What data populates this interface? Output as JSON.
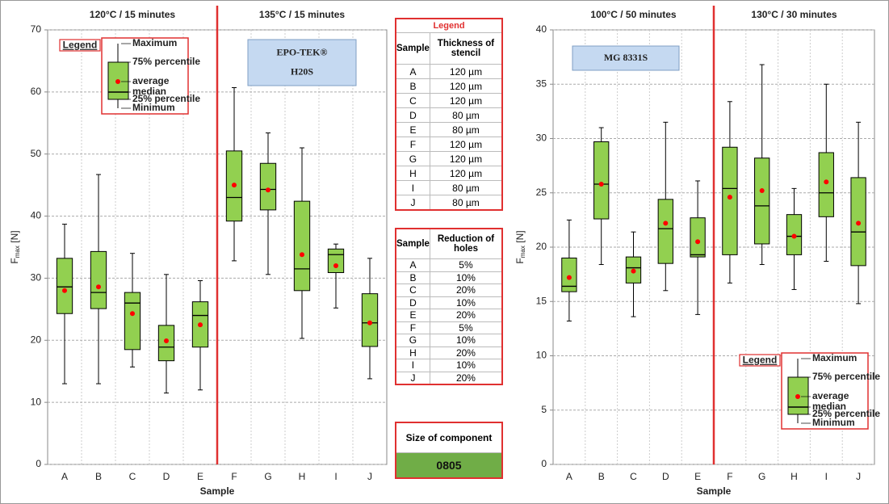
{
  "chart_data": [
    {
      "type": "box",
      "sections": [
        "120°C / 15 minutes",
        "135°C / 15 minutes"
      ],
      "label": [
        "EPO-TEK®",
        "H20S"
      ],
      "x_label": "Sample",
      "y_label": {
        "symbol": "F",
        "subscript": "max",
        "unit": "[N]"
      },
      "categories": [
        "A",
        "B",
        "C",
        "D",
        "E",
        "F",
        "G",
        "H",
        "I",
        "J"
      ],
      "min": [
        13,
        13,
        15.7,
        11.5,
        12,
        32.8,
        30.6,
        20.3,
        25.2,
        13.8
      ],
      "q1": [
        24.3,
        25.1,
        18.5,
        16.7,
        18.9,
        39.2,
        41,
        28,
        30.9,
        19
      ],
      "median": [
        28.6,
        27.7,
        26,
        18.9,
        24,
        43,
        44.3,
        31.5,
        33.8,
        22.8
      ],
      "q3": [
        33.2,
        34.3,
        27.7,
        22.4,
        26.2,
        50.5,
        48.5,
        42.4,
        34.7,
        27.5
      ],
      "max": [
        38.7,
        46.7,
        34,
        30.6,
        29.6,
        60.7,
        53.4,
        51,
        35.5,
        33.2
      ],
      "mean": [
        28,
        28.6,
        24.3,
        19.9,
        22.5,
        45,
        44.2,
        33.8,
        32,
        22.8
      ],
      "box_color": "#92d050",
      "mean_color": "#ff0000",
      "ylim": [
        0,
        70
      ],
      "yticks": [
        0,
        10,
        20,
        30,
        40,
        50,
        60,
        70
      ],
      "grid": true,
      "legend": {
        "title": "Legend",
        "labels": [
          "Maximum",
          "75% percentile",
          "average",
          "median",
          "25% percentile",
          "Minimum"
        ]
      }
    },
    {
      "type": "box",
      "sections": [
        "100°C / 50 minutes",
        "130°C / 30 minutes"
      ],
      "label": [
        "MG 8331S"
      ],
      "x_label": "Sample",
      "y_label": {
        "symbol": "F",
        "subscript": "max",
        "unit": "[N]"
      },
      "categories": [
        "A",
        "B",
        "C",
        "D",
        "E",
        "F",
        "G",
        "H",
        "I",
        "J"
      ],
      "min": [
        13.2,
        18.4,
        13.6,
        16,
        13.8,
        16.7,
        18.4,
        16.1,
        18.7,
        14.8
      ],
      "q1": [
        15.9,
        22.6,
        16.7,
        18.5,
        19.1,
        19.3,
        20.3,
        19.3,
        22.8,
        18.3
      ],
      "median": [
        16.4,
        25.8,
        18.1,
        21.7,
        19.3,
        25.4,
        23.8,
        21,
        25,
        21.4
      ],
      "q3": [
        19,
        29.7,
        19.1,
        24.4,
        22.7,
        29.2,
        28.2,
        23,
        28.7,
        26.4
      ],
      "max": [
        22.5,
        31,
        21.4,
        31.5,
        26.1,
        33.4,
        36.8,
        25.4,
        35,
        31.5
      ],
      "mean": [
        17.2,
        25.8,
        17.8,
        22.2,
        20.5,
        24.6,
        25.2,
        21,
        26,
        22.2
      ],
      "box_color": "#92d050",
      "mean_color": "#ff0000",
      "ylim": [
        0,
        40
      ],
      "yticks": [
        0,
        5,
        10,
        15,
        20,
        25,
        30,
        35,
        40
      ],
      "grid": true,
      "legend": {
        "title": "Legend",
        "labels": [
          "Maximum",
          "75% percentile",
          "average",
          "median",
          "25% percentile",
          "Minimum"
        ]
      }
    }
  ],
  "thickness_table": {
    "title": "Legend",
    "header": [
      "Sample",
      "Thickness of stencil"
    ],
    "rows": [
      [
        "A",
        "120 µm"
      ],
      [
        "B",
        "120 µm"
      ],
      [
        "C",
        "120 µm"
      ],
      [
        "D",
        "80 µm"
      ],
      [
        "E",
        "80 µm"
      ],
      [
        "F",
        "120 µm"
      ],
      [
        "G",
        "120 µm"
      ],
      [
        "H",
        "120 µm"
      ],
      [
        "I",
        "80 µm"
      ],
      [
        "J",
        "80 µm"
      ]
    ]
  },
  "reduction_table": {
    "header": [
      "Sample",
      "Reduction of holes"
    ],
    "rows": [
      [
        "A",
        "5%"
      ],
      [
        "B",
        "10%"
      ],
      [
        "C",
        "20%"
      ],
      [
        "D",
        "10%"
      ],
      [
        "E",
        "20%"
      ],
      [
        "F",
        "5%"
      ],
      [
        "G",
        "10%"
      ],
      [
        "H",
        "20%"
      ],
      [
        "I",
        "10%"
      ],
      [
        "J",
        "20%"
      ]
    ]
  },
  "component": {
    "label": "Size of component",
    "value": "0805"
  }
}
